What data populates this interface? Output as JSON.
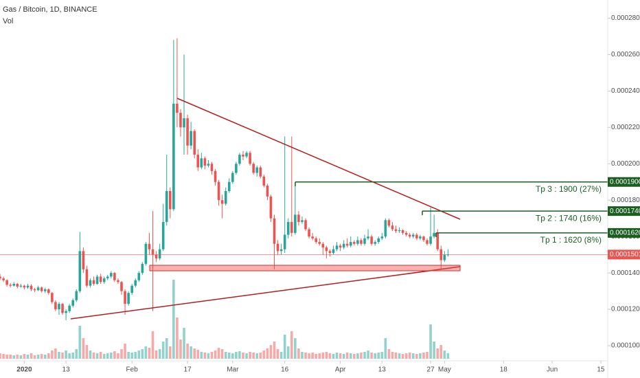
{
  "chart_data": {
    "type": "candlestick",
    "title": "Gas / Bitcoin, 1D, BINANCE",
    "volume_label": "Vol",
    "up_color": "#26a69a",
    "down_color": "#ef5350",
    "level_color": "#1b5e20",
    "xlim": [
      "2019-12-25",
      "2020-06-17"
    ],
    "ylim": [
      9.17e-05,
      0.00029
    ],
    "yticks": [
      {
        "value": 0.0001,
        "label": "0.0001000"
      },
      {
        "value": 0.00012,
        "label": "0.0001200"
      },
      {
        "value": 0.00014,
        "label": "0.0001400"
      },
      {
        "value": 0.00016,
        "label": "0.0001600"
      },
      {
        "value": 0.00018,
        "label": "0.0001800"
      },
      {
        "value": 0.0002,
        "label": "0.0002000"
      },
      {
        "value": 0.00022,
        "label": "0.0002200"
      },
      {
        "value": 0.00024,
        "label": "0.0002400"
      },
      {
        "value": 0.00026,
        "label": "0.0002600"
      },
      {
        "value": 0.00028,
        "label": "0.0002800"
      }
    ],
    "xticks": [
      {
        "value": "2020-01-01",
        "label": "2020"
      },
      {
        "value": "2020-01-13",
        "label": "13"
      },
      {
        "value": "2020-02-01",
        "label": "Feb"
      },
      {
        "value": "2020-02-17",
        "label": "17"
      },
      {
        "value": "2020-03-01",
        "label": "Mar"
      },
      {
        "value": "2020-03-16",
        "label": "16"
      },
      {
        "value": "2020-04-01",
        "label": "Apr"
      },
      {
        "value": "2020-04-13",
        "label": "13"
      },
      {
        "value": "2020-04-27",
        "label": "27"
      },
      {
        "value": "2020-05-01",
        "label": "May"
      },
      {
        "value": "2020-05-18",
        "label": "18"
      },
      {
        "value": "2020-06-01",
        "label": "Jun"
      },
      {
        "value": "2020-06-15",
        "label": "15"
      }
    ],
    "levels": [
      {
        "value": 0.00019,
        "label": "0.0001900",
        "text": "Tp 3 : 1900 (27%)"
      },
      {
        "value": 0.000174,
        "label": "0.0001740",
        "text": "Tp 2 : 1740 (16%)"
      },
      {
        "value": 0.000162,
        "label": "0.0001620",
        "text": "Tp 1 : 1620 (8%)"
      }
    ],
    "last": {
      "value": 0.0001501,
      "label": "0.0001501"
    },
    "x": [
      "2019-12-25",
      "2019-12-26",
      "2019-12-27",
      "2019-12-28",
      "2019-12-29",
      "2019-12-30",
      "2019-12-31",
      "2020-01-01",
      "2020-01-02",
      "2020-01-03",
      "2020-01-04",
      "2020-01-05",
      "2020-01-06",
      "2020-01-07",
      "2020-01-08",
      "2020-01-09",
      "2020-01-10",
      "2020-01-11",
      "2020-01-12",
      "2020-01-13",
      "2020-01-14",
      "2020-01-15",
      "2020-01-16",
      "2020-01-17",
      "2020-01-18",
      "2020-01-19",
      "2020-01-20",
      "2020-01-21",
      "2020-01-22",
      "2020-01-23",
      "2020-01-24",
      "2020-01-25",
      "2020-01-26",
      "2020-01-27",
      "2020-01-28",
      "2020-01-29",
      "2020-01-30",
      "2020-01-31",
      "2020-02-01",
      "2020-02-02",
      "2020-02-03",
      "2020-02-04",
      "2020-02-05",
      "2020-02-06",
      "2020-02-07",
      "2020-02-08",
      "2020-02-09",
      "2020-02-10",
      "2020-02-11",
      "2020-02-12",
      "2020-02-13",
      "2020-02-14",
      "2020-02-15",
      "2020-02-16",
      "2020-02-17",
      "2020-02-18",
      "2020-02-19",
      "2020-02-20",
      "2020-02-21",
      "2020-02-22",
      "2020-02-23",
      "2020-02-24",
      "2020-02-25",
      "2020-02-26",
      "2020-02-27",
      "2020-02-28",
      "2020-02-29",
      "2020-03-01",
      "2020-03-02",
      "2020-03-03",
      "2020-03-04",
      "2020-03-05",
      "2020-03-06",
      "2020-03-07",
      "2020-03-08",
      "2020-03-09",
      "2020-03-10",
      "2020-03-11",
      "2020-03-12",
      "2020-03-13",
      "2020-03-14",
      "2020-03-15",
      "2020-03-16",
      "2020-03-17",
      "2020-03-18",
      "2020-03-19",
      "2020-03-20",
      "2020-03-21",
      "2020-03-22",
      "2020-03-23",
      "2020-03-24",
      "2020-03-25",
      "2020-03-26",
      "2020-03-27",
      "2020-03-28",
      "2020-03-29",
      "2020-03-30",
      "2020-03-31",
      "2020-04-01",
      "2020-04-02",
      "2020-04-03",
      "2020-04-04",
      "2020-04-05",
      "2020-04-06",
      "2020-04-07",
      "2020-04-08",
      "2020-04-09",
      "2020-04-10",
      "2020-04-11",
      "2020-04-12",
      "2020-04-13",
      "2020-04-14",
      "2020-04-15",
      "2020-04-16",
      "2020-04-17",
      "2020-04-18",
      "2020-04-19",
      "2020-04-20",
      "2020-04-21",
      "2020-04-22",
      "2020-04-23",
      "2020-04-24",
      "2020-04-25",
      "2020-04-26",
      "2020-04-27",
      "2020-04-28",
      "2020-04-29",
      "2020-04-30",
      "2020-05-01",
      "2020-05-02"
    ],
    "ohlc": [
      [
        0.000138,
        0.0001395,
        0.000136,
        0.000137
      ],
      [
        0.000137,
        0.000138,
        0.000135,
        0.000136
      ],
      [
        0.000136,
        0.0001365,
        0.0001325,
        0.0001335
      ],
      [
        0.0001335,
        0.0001345,
        0.000132,
        0.000133
      ],
      [
        0.000133,
        0.000135,
        0.0001325,
        0.000134
      ],
      [
        0.000134,
        0.0001345,
        0.0001315,
        0.0001325
      ],
      [
        0.0001325,
        0.000134,
        0.0001318,
        0.000133
      ],
      [
        0.000133,
        0.0001335,
        0.000131,
        0.000132
      ],
      [
        0.000132,
        0.000134,
        0.0001312,
        0.000133
      ],
      [
        0.000133,
        0.0001338,
        0.00013,
        0.000131
      ],
      [
        0.000131,
        0.0001318,
        0.0001295,
        0.0001305
      ],
      [
        0.0001305,
        0.000133,
        0.00013,
        0.000132
      ],
      [
        0.000132,
        0.0001325,
        0.0001292,
        0.00013
      ],
      [
        0.00013,
        0.0001318,
        0.000129,
        0.000131
      ],
      [
        0.000131,
        0.0001315,
        0.000128,
        0.000129
      ],
      [
        0.000129,
        0.0001295,
        0.000123,
        0.000124
      ],
      [
        0.000124,
        0.000125,
        0.000119,
        0.00012
      ],
      [
        0.00012,
        0.000124,
        0.000117,
        0.000123
      ],
      [
        0.000123,
        0.0001235,
        0.000117,
        0.000118
      ],
      [
        0.000118,
        0.00012,
        0.000114,
        0.000119
      ],
      [
        0.000119,
        0.000123,
        0.000118,
        0.000122
      ],
      [
        0.000122,
        0.000126,
        0.000121,
        0.000125
      ],
      [
        0.000125,
        0.000131,
        0.000124,
        0.00013
      ],
      [
        0.00013,
        0.0001625,
        0.000129,
        0.000152
      ],
      [
        0.000152,
        0.000154,
        0.00014,
        0.000142
      ],
      [
        0.000142,
        0.000144,
        0.000132,
        0.000133
      ],
      [
        0.000133,
        0.000137,
        0.000132,
        0.000136
      ],
      [
        0.000136,
        0.000138,
        0.000133,
        0.000134
      ],
      [
        0.000134,
        0.000139,
        0.0001335,
        0.000138
      ],
      [
        0.000138,
        0.0001395,
        0.000134,
        0.000135
      ],
      [
        0.000135,
        0.000138,
        0.000134,
        0.000137
      ],
      [
        0.000137,
        0.000139,
        0.000136,
        0.000138
      ],
      [
        0.000138,
        0.000141,
        0.000137,
        0.00014
      ],
      [
        0.00014,
        0.0001405,
        0.000135,
        0.000136
      ],
      [
        0.000136,
        0.000137,
        0.000134,
        0.000135
      ],
      [
        0.000135,
        0.0001355,
        0.000128,
        0.00013
      ],
      [
        0.00013,
        0.000131,
        0.000117,
        0.000123
      ],
      [
        0.000123,
        0.00013,
        0.000122,
        0.000129
      ],
      [
        0.000129,
        0.000134,
        0.000128,
        0.000133
      ],
      [
        0.000133,
        0.000137,
        0.000132,
        0.000136
      ],
      [
        0.000136,
        0.000141,
        0.000135,
        0.00014
      ],
      [
        0.00014,
        0.000146,
        0.000139,
        0.000145
      ],
      [
        0.000145,
        0.000157,
        0.000144,
        0.000156
      ],
      [
        0.000156,
        0.000162,
        0.00015,
        0.000153
      ],
      [
        0.000153,
        0.000174,
        0.000119,
        0.00015
      ],
      [
        0.00015,
        0.000152,
        0.000146,
        0.000148
      ],
      [
        0.000148,
        0.000156,
        0.000147,
        0.000153
      ],
      [
        0.000153,
        0.000178,
        0.000152,
        0.000168
      ],
      [
        0.000168,
        0.000205,
        0.000166,
        0.000185
      ],
      [
        0.000185,
        0.000187,
        0.00017,
        0.000175
      ],
      [
        0.000175,
        0.000268,
        0.000174,
        0.000233
      ],
      [
        0.000233,
        0.000269,
        0.00022,
        0.000228
      ],
      [
        0.000228,
        0.00023,
        0.000215,
        0.00022
      ],
      [
        0.00022,
        0.00026,
        0.000205,
        0.000225
      ],
      [
        0.000225,
        0.000227,
        0.000205,
        0.00021
      ],
      [
        0.00021,
        0.000223,
        0.000208,
        0.000218
      ],
      [
        0.000218,
        0.000219,
        0.000203,
        0.000205
      ],
      [
        0.000205,
        0.000208,
        0.000196,
        0.000198
      ],
      [
        0.000198,
        0.000206,
        0.000197,
        0.000203
      ],
      [
        0.000203,
        0.000204,
        0.000197,
        0.000199
      ],
      [
        0.000199,
        0.000202,
        0.000198,
        0.0002
      ],
      [
        0.0002,
        0.000201,
        0.000194,
        0.000196
      ],
      [
        0.000196,
        0.000197,
        0.000188,
        0.00019
      ],
      [
        0.00019,
        0.000191,
        0.000177,
        0.00018
      ],
      [
        0.00018,
        0.000183,
        0.00017,
        0.000178
      ],
      [
        0.000178,
        0.000187,
        0.000177,
        0.000185
      ],
      [
        0.000185,
        0.000192,
        0.000184,
        0.00019
      ],
      [
        0.00019,
        0.000196,
        0.000189,
        0.000195
      ],
      [
        0.000195,
        0.000201,
        0.000194,
        0.0002
      ],
      [
        0.0002,
        0.000206,
        0.000199,
        0.000205
      ],
      [
        0.000205,
        0.000207,
        0.000202,
        0.000204
      ],
      [
        0.000204,
        0.000207,
        0.000203,
        0.000206
      ],
      [
        0.000206,
        0.000207,
        0.000199,
        0.0002
      ],
      [
        0.0002,
        0.000201,
        0.000194,
        0.000195
      ],
      [
        0.000195,
        0.000199,
        0.000193,
        0.000198
      ],
      [
        0.000198,
        0.000199,
        0.000192,
        0.000193
      ],
      [
        0.000193,
        0.000194,
        0.000187,
        0.000188
      ],
      [
        0.000188,
        0.000189,
        0.00018,
        0.000182
      ],
      [
        0.000182,
        0.000183,
        0.000168,
        0.00017
      ],
      [
        0.00017,
        0.000172,
        0.000142,
        0.000156
      ],
      [
        0.000156,
        0.000158,
        0.00015,
        0.000152
      ],
      [
        0.000152,
        0.000156,
        0.00015,
        0.000153
      ],
      [
        0.000153,
        0.000215,
        0.000151,
        0.000161
      ],
      [
        0.000161,
        0.00017,
        0.000159,
        0.000168
      ],
      [
        0.000168,
        0.000215,
        0.00016,
        0.000162
      ],
      [
        0.000162,
        0.00019,
        0.000161,
        0.000172
      ],
      [
        0.000172,
        0.000174,
        0.000166,
        0.000168
      ],
      [
        0.000168,
        0.000171,
        0.000167,
        0.000169
      ],
      [
        0.000169,
        0.00017,
        0.000163,
        0.000164
      ],
      [
        0.000164,
        0.000165,
        0.000159,
        0.00016
      ],
      [
        0.00016,
        0.000162,
        0.000158,
        0.000159
      ],
      [
        0.000159,
        0.00016,
        0.000156,
        0.000157
      ],
      [
        0.000157,
        0.000159,
        0.000155,
        0.000156
      ],
      [
        0.000156,
        0.000157,
        0.00015,
        0.000154
      ],
      [
        0.000154,
        0.000155,
        0.000148,
        0.000152
      ],
      [
        0.000152,
        0.000153,
        0.000149,
        0.000151
      ],
      [
        0.000151,
        0.000155,
        0.00015,
        0.000153
      ],
      [
        0.000153,
        0.000157,
        0.000152,
        0.000155
      ],
      [
        0.000155,
        0.000156,
        0.000152,
        0.000154
      ],
      [
        0.000154,
        0.000158,
        0.000153,
        0.000156
      ],
      [
        0.000156,
        0.000159,
        0.000154,
        0.000155
      ],
      [
        0.000155,
        0.00016,
        0.000154,
        0.000157
      ],
      [
        0.000157,
        0.000158,
        0.000155,
        0.000156
      ],
      [
        0.000156,
        0.00016,
        0.000155,
        0.000158
      ],
      [
        0.000158,
        0.000159,
        0.000155,
        0.000156
      ],
      [
        0.000156,
        0.000161,
        0.000155,
        0.000159
      ],
      [
        0.000159,
        0.000164,
        0.000158,
        0.00016
      ],
      [
        0.00016,
        0.000161,
        0.000155,
        0.000156
      ],
      [
        0.000156,
        0.000158,
        0.000155,
        0.000157
      ],
      [
        0.000157,
        0.00016,
        0.000156,
        0.000159
      ],
      [
        0.000159,
        0.000162,
        0.000158,
        0.00016
      ],
      [
        0.00016,
        0.00017,
        0.000159,
        0.000169
      ],
      [
        0.000169,
        0.00017,
        0.000165,
        0.000166
      ],
      [
        0.000166,
        0.000168,
        0.000163,
        0.000164
      ],
      [
        0.000164,
        0.000166,
        0.000162,
        0.000163
      ],
      [
        0.000163,
        0.000165,
        0.000162,
        0.0001635
      ],
      [
        0.0001635,
        0.000164,
        0.000161,
        0.000162
      ],
      [
        0.000162,
        0.000163,
        0.00016,
        0.000161
      ],
      [
        0.000161,
        0.000162,
        0.000159,
        0.00016
      ],
      [
        0.00016,
        0.000162,
        0.000159,
        0.000161
      ],
      [
        0.000161,
        0.000162,
        0.000158,
        0.000159
      ],
      [
        0.000159,
        0.000161,
        0.000158,
        0.00016
      ],
      [
        0.00016,
        0.0001605,
        0.000157,
        0.000158
      ],
      [
        0.000158,
        0.000159,
        0.000155,
        0.000156
      ],
      [
        0.000156,
        0.000176,
        0.000155,
        0.00016
      ],
      [
        0.00016,
        0.000172,
        0.000159,
        0.000162
      ],
      [
        0.000162,
        0.000164,
        0.000152,
        0.000153
      ],
      [
        0.000153,
        0.000155,
        0.000142,
        0.000147
      ],
      [
        0.000147,
        0.000152,
        0.000146,
        0.00015
      ],
      [
        0.00015,
        0.000153,
        0.000149,
        0.0001501
      ]
    ],
    "volume": [
      8,
      7,
      6,
      6,
      5,
      6,
      5,
      7,
      6,
      8,
      5,
      6,
      7,
      6,
      8,
      12,
      15,
      10,
      9,
      12,
      8,
      9,
      14,
      48,
      30,
      20,
      12,
      9,
      8,
      10,
      7,
      8,
      9,
      11,
      8,
      14,
      22,
      10,
      9,
      10,
      12,
      14,
      18,
      16,
      40,
      12,
      14,
      25,
      30,
      18,
      115,
      60,
      28,
      45,
      22,
      18,
      15,
      13,
      10,
      9,
      8,
      10,
      12,
      16,
      14,
      10,
      9,
      8,
      10,
      11,
      9,
      8,
      10,
      9,
      8,
      9,
      12,
      15,
      20,
      25,
      14,
      10,
      35,
      18,
      40,
      30,
      15,
      10,
      9,
      8,
      9,
      7,
      8,
      9,
      10,
      8,
      7,
      9,
      8,
      7,
      9,
      8,
      7,
      8,
      9,
      10,
      12,
      9,
      8,
      9,
      10,
      30,
      14,
      10,
      9,
      8,
      7,
      8,
      9,
      8,
      7,
      8,
      9,
      10,
      50,
      25,
      15,
      20,
      12,
      8
    ]
  }
}
